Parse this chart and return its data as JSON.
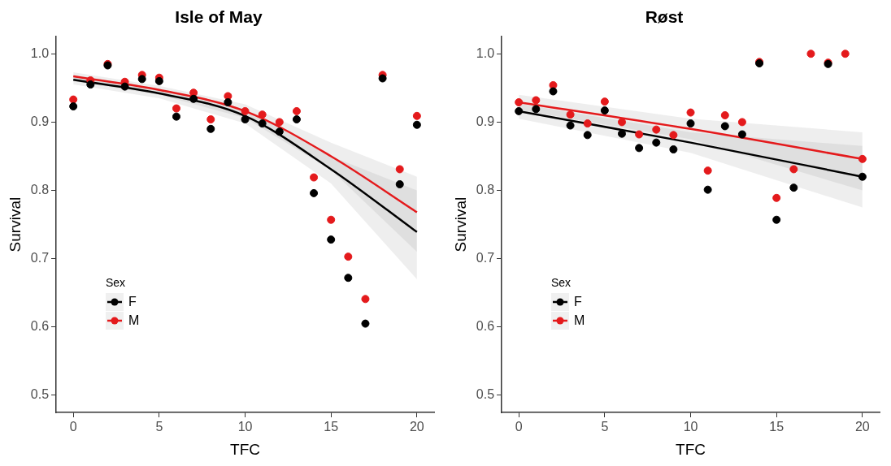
{
  "chart_data": [
    {
      "type": "scatter",
      "title": "Isle of May",
      "xlabel": "TFC",
      "ylabel": "Survival",
      "legend_title": "Sex",
      "legend": "left",
      "marker": "circle",
      "grid": false,
      "xlim": [
        -1,
        21
      ],
      "xticks": [
        0,
        5,
        10,
        15,
        20
      ],
      "ylim": [
        0.475,
        1.025
      ],
      "yticks": [
        0.5,
        0.6,
        0.7,
        0.8,
        0.9,
        {
          "value": 1,
          "label": "1.0"
        }
      ],
      "series": [
        {
          "type": "line",
          "marker": "none",
          "color": "#000000",
          "x": [
            0,
            5,
            10,
            15,
            20
          ],
          "values": [
            0.962,
            0.942,
            0.909,
            0.831,
            0.739
          ],
          "lower": [
            0.955,
            0.935,
            0.898,
            0.81,
            0.67
          ],
          "upper": [
            0.969,
            0.949,
            0.919,
            0.85,
            0.8
          ]
        },
        {
          "type": "line",
          "marker": "none",
          "color": "#e41a1c",
          "x": [
            0,
            5,
            10,
            15,
            20
          ],
          "values": [
            0.967,
            0.947,
            0.916,
            0.85,
            0.768
          ],
          "lower": [
            0.96,
            0.94,
            0.906,
            0.83,
            0.71
          ],
          "upper": [
            0.973,
            0.953,
            0.926,
            0.87,
            0.82
          ]
        },
        {
          "name": "F",
          "color": "#000000",
          "x": [
            0,
            1,
            2,
            3,
            4,
            5,
            6,
            7,
            8,
            9,
            10,
            11,
            12,
            13,
            14,
            15,
            16,
            17,
            18,
            19,
            20
          ],
          "values": [
            0.923,
            0.955,
            0.983,
            0.952,
            0.963,
            0.96,
            0.908,
            0.934,
            0.89,
            0.929,
            0.904,
            0.898,
            0.886,
            0.904,
            0.796,
            0.728,
            0.672,
            0.605,
            0.964,
            0.809,
            0.896
          ]
        },
        {
          "name": "M",
          "color": "#e41a1c",
          "x": [
            0,
            1,
            2,
            3,
            4,
            5,
            6,
            7,
            8,
            9,
            10,
            11,
            12,
            13,
            14,
            15,
            16,
            17,
            18,
            19,
            20
          ],
          "values": [
            0.933,
            0.961,
            0.985,
            0.959,
            0.969,
            0.965,
            0.92,
            0.943,
            0.904,
            0.938,
            0.916,
            0.911,
            0.9,
            0.916,
            0.819,
            0.757,
            0.703,
            0.641,
            0.969,
            0.831,
            0.909
          ]
        }
      ]
    },
    {
      "type": "scatter",
      "title": "Røst",
      "xlabel": "TFC",
      "ylabel": "Survival",
      "legend_title": "Sex",
      "legend": "left",
      "marker": "circle",
      "grid": false,
      "xlim": [
        -1,
        21
      ],
      "xticks": [
        0,
        5,
        10,
        15,
        20
      ],
      "ylim": [
        0.475,
        1.025
      ],
      "yticks": [
        0.5,
        0.6,
        0.7,
        0.8,
        0.9,
        {
          "value": 1,
          "label": "1.0"
        }
      ],
      "series": [
        {
          "type": "line",
          "marker": "none",
          "color": "#000000",
          "x": [
            0,
            10,
            20
          ],
          "values": [
            0.916,
            0.87,
            0.82
          ],
          "lower": [
            0.905,
            0.855,
            0.775
          ],
          "upper": [
            0.927,
            0.885,
            0.865
          ]
        },
        {
          "type": "line",
          "marker": "none",
          "color": "#e41a1c",
          "x": [
            0,
            10,
            20
          ],
          "values": [
            0.929,
            0.89,
            0.846
          ],
          "lower": [
            0.918,
            0.875,
            0.8
          ],
          "upper": [
            0.94,
            0.905,
            0.885
          ]
        },
        {
          "name": "F",
          "color": "#000000",
          "x": [
            0,
            1,
            2,
            3,
            4,
            5,
            6,
            7,
            8,
            9,
            10,
            11,
            12,
            13,
            14,
            15,
            16,
            17,
            18,
            19,
            20
          ],
          "values": [
            0.916,
            0.919,
            0.945,
            0.895,
            0.881,
            0.917,
            0.883,
            0.862,
            0.87,
            0.86,
            0.898,
            0.801,
            0.894,
            0.882,
            0.986,
            0.757,
            0.804,
            null,
            0.985,
            null,
            0.82
          ]
        },
        {
          "name": "M",
          "color": "#e41a1c",
          "x": [
            0,
            1,
            2,
            3,
            4,
            5,
            6,
            7,
            8,
            9,
            10,
            11,
            12,
            13,
            14,
            15,
            16,
            17,
            18,
            19,
            20
          ],
          "values": [
            0.929,
            0.932,
            0.954,
            0.911,
            0.898,
            0.93,
            0.9,
            0.882,
            0.889,
            0.881,
            0.914,
            0.829,
            0.91,
            0.9,
            0.988,
            0.789,
            0.831,
            1.0,
            0.987,
            1.0,
            0.846
          ]
        }
      ]
    }
  ]
}
